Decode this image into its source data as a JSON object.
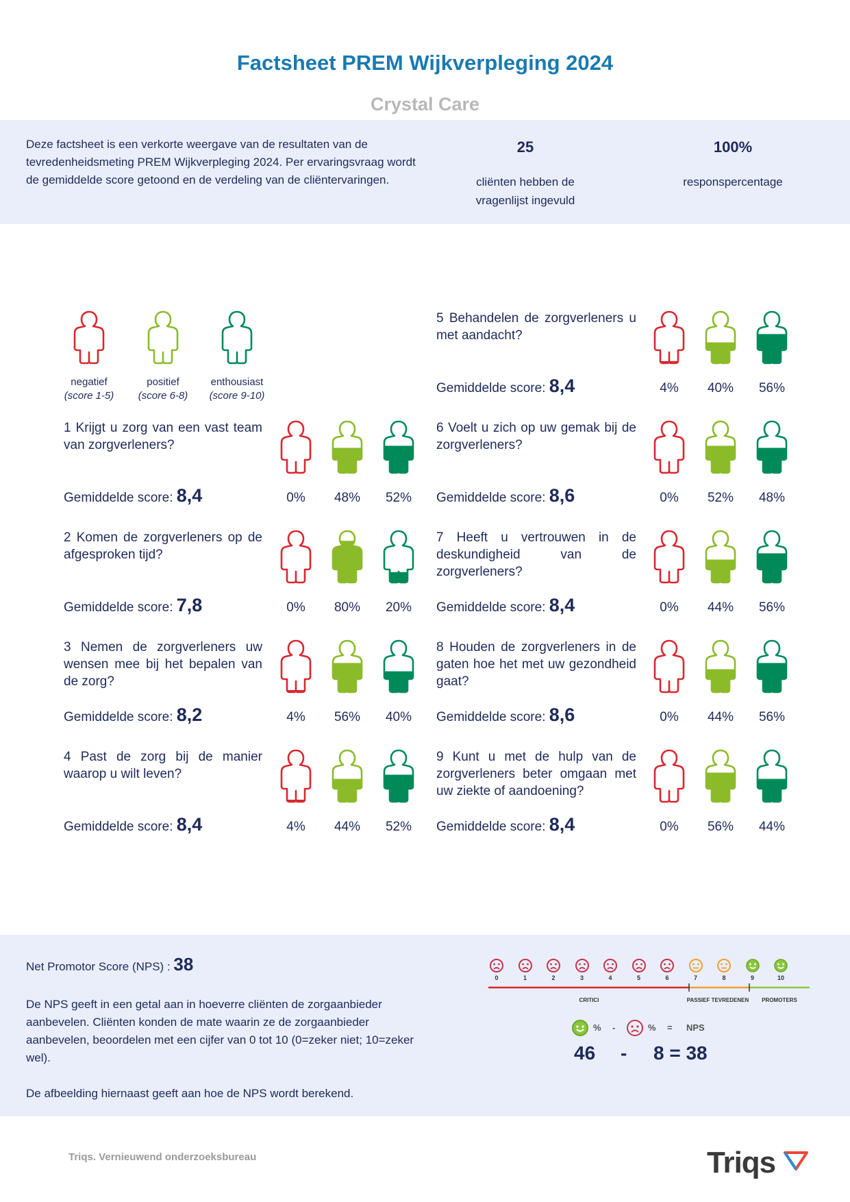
{
  "header": {
    "title": "Factsheet PREM Wijkverpleging 2024",
    "subtitle": "Crystal Care"
  },
  "intro": {
    "text": "Deze factsheet is een verkorte weergave van de resultaten van de tevredenheidsmeting PREM Wijkverpleging 2024. Per ervaringsvraag wordt de gemiddelde score getoond en de verdeling van de cliëntervaringen.",
    "respondents_value": "25",
    "respondents_label": "cliënten hebben de vragenlijst ingevuld",
    "response_value": "100%",
    "response_label": "responspercentage"
  },
  "legend": [
    {
      "label": "negatief",
      "sub": "(score 1-5)"
    },
    {
      "label": "positief",
      "sub": "(score 6-8)"
    },
    {
      "label": "enthousiast",
      "sub": "(score 9-10)"
    }
  ],
  "colors": {
    "negatief": "#d9272e",
    "positief": "#8cbb2a",
    "enthousiast": "#008a5a",
    "title": "#1a7ab0"
  },
  "score_label": "Gemiddelde score:",
  "questions": [
    {
      "text": "1 Krijgt u zorg van een vast team van zorgverleners?",
      "score": "8,4",
      "neg": 0,
      "pos": 48,
      "ent": 52,
      "neg_label": "0%",
      "pos_label": "48%",
      "ent_label": "52%"
    },
    {
      "text": "2 Komen de zorgverleners op de afgesproken tijd?",
      "score": "7,8",
      "neg": 0,
      "pos": 80,
      "ent": 20,
      "neg_label": "0%",
      "pos_label": "80%",
      "ent_label": "20%"
    },
    {
      "text": "3 Nemen de zorgverleners uw wensen mee bij het bepalen van de zorg?",
      "score": "8,2",
      "neg": 4,
      "pos": 56,
      "ent": 40,
      "neg_label": "4%",
      "pos_label": "56%",
      "ent_label": "40%"
    },
    {
      "text": "4 Past de zorg bij de manier waarop u wilt leven?",
      "score": "8,4",
      "neg": 4,
      "pos": 44,
      "ent": 52,
      "neg_label": "4%",
      "pos_label": "44%",
      "ent_label": "52%"
    },
    {
      "text": "5 Behandelen de zorgverleners u met aandacht?",
      "score": "8,4",
      "neg": 4,
      "pos": 40,
      "ent": 56,
      "neg_label": "4%",
      "pos_label": "40%",
      "ent_label": "56%"
    },
    {
      "text": "6 Voelt u zich op uw gemak bij de zorgverleners?",
      "score": "8,6",
      "neg": 0,
      "pos": 52,
      "ent": 48,
      "neg_label": "0%",
      "pos_label": "52%",
      "ent_label": "48%"
    },
    {
      "text": "7 Heeft u vertrouwen in de deskundigheid van de zorgverleners?",
      "score": "8,4",
      "neg": 0,
      "pos": 44,
      "ent": 56,
      "neg_label": "0%",
      "pos_label": "44%",
      "ent_label": "56%"
    },
    {
      "text": "8 Houden de zorgverleners in de gaten hoe het met uw gezondheid gaat?",
      "score": "8,6",
      "neg": 0,
      "pos": 44,
      "ent": 56,
      "neg_label": "0%",
      "pos_label": "44%",
      "ent_label": "56%"
    },
    {
      "text": "9 Kunt u met de hulp van de zorgverleners beter omgaan met uw ziekte of aandoening?",
      "score": "8,4",
      "neg": 0,
      "pos": 56,
      "ent": 44,
      "neg_label": "0%",
      "pos_label": "56%",
      "ent_label": "44%"
    }
  ],
  "nps": {
    "label": "Net Promotor Score (NPS) :",
    "value": "38",
    "para1": "De NPS geeft in een getal aan in hoeverre cliënten de zorgaanbieder aanbevelen. Cliënten konden de mate waarin ze de zorgaanbieder aanbevelen, beoordelen met een cijfer van 0 tot 10 (0=zeker niet; 10=zeker wel).",
    "para2": "De afbeelding hiernaast geeft aan hoe de NPS wordt berekend.",
    "scale": [
      "0",
      "1",
      "2",
      "3",
      "4",
      "5",
      "6",
      "7",
      "8",
      "9",
      "10"
    ],
    "seg_critici": "CRITICI",
    "seg_passief": "PASSIEF TEVREDENEN",
    "seg_promoters": "PROMOTERS",
    "formula_pct": "%",
    "formula_minus": "-",
    "formula_eq": "=",
    "formula_nps": "NPS",
    "promoters": "46",
    "minus": "-",
    "critici_result": "8 = 38"
  },
  "footer": {
    "company": "Triqs. Vernieuwend onderzoeksbureau",
    "logo": "Triqs"
  }
}
